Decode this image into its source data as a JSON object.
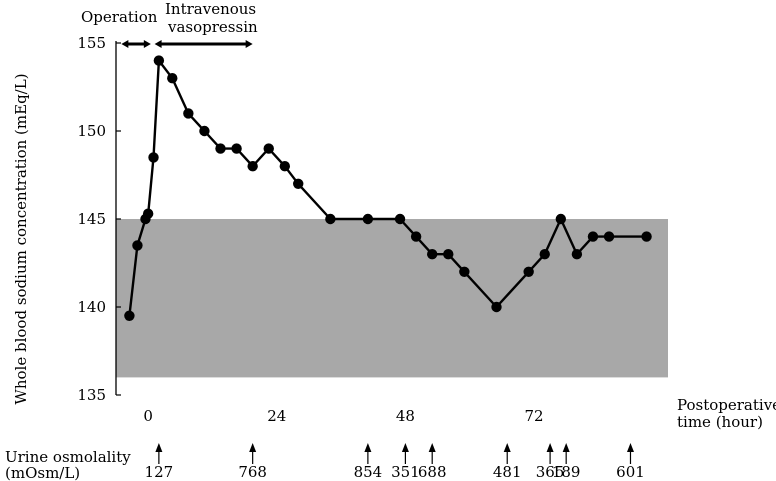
{
  "chart_data": {
    "type": "line",
    "ylabel": "Whole blood sodium concentration (mEq/L)",
    "xlabel_line1": "Postoperative",
    "xlabel_line2": "time (hour)",
    "ylim": [
      135,
      155
    ],
    "xlim": [
      -6,
      97
    ],
    "y_ticks": [
      135,
      140,
      145,
      150,
      155
    ],
    "x_ticks": [
      0,
      24,
      48,
      72
    ],
    "normal_range": [
      136,
      145
    ],
    "normal_range_color": "#a8a8a8",
    "series": [
      {
        "x": [
          -3.5,
          -2,
          -0.5,
          0,
          1,
          2,
          4.5,
          7.5,
          10.5,
          13.5,
          16.5,
          19.5,
          22.5,
          25.5,
          28,
          34,
          41,
          47,
          50,
          53,
          56,
          59,
          65,
          71,
          74,
          77,
          80,
          83,
          86,
          93
        ],
        "y": [
          139.5,
          143.5,
          145,
          145.3,
          148.5,
          154,
          153,
          151,
          150,
          149,
          149,
          148,
          149,
          148,
          147,
          145,
          145,
          145,
          144,
          143,
          143,
          142,
          140,
          142,
          143,
          145,
          143,
          144,
          144,
          144
        ],
        "color": "#000000"
      }
    ],
    "annotations": {
      "operation": {
        "label": "Operation",
        "x_range": [
          -5,
          0.5
        ]
      },
      "vasopressin": {
        "label_line1": "Intravenous",
        "label_line2": "vasopressin",
        "x_range": [
          1.2,
          19.5
        ]
      }
    },
    "urine_osmolality": {
      "label_line1": "Urine osmolality",
      "label_line2": "(mOsm/L)",
      "points": [
        {
          "x": 2,
          "value": "127"
        },
        {
          "x": 19.5,
          "value": "768"
        },
        {
          "x": 41,
          "value": "854"
        },
        {
          "x": 48,
          "value": "351"
        },
        {
          "x": 53,
          "value": "688"
        },
        {
          "x": 67,
          "value": "481"
        },
        {
          "x": 75,
          "value": "365"
        },
        {
          "x": 78,
          "value": "189"
        },
        {
          "x": 90,
          "value": "601"
        }
      ]
    }
  }
}
